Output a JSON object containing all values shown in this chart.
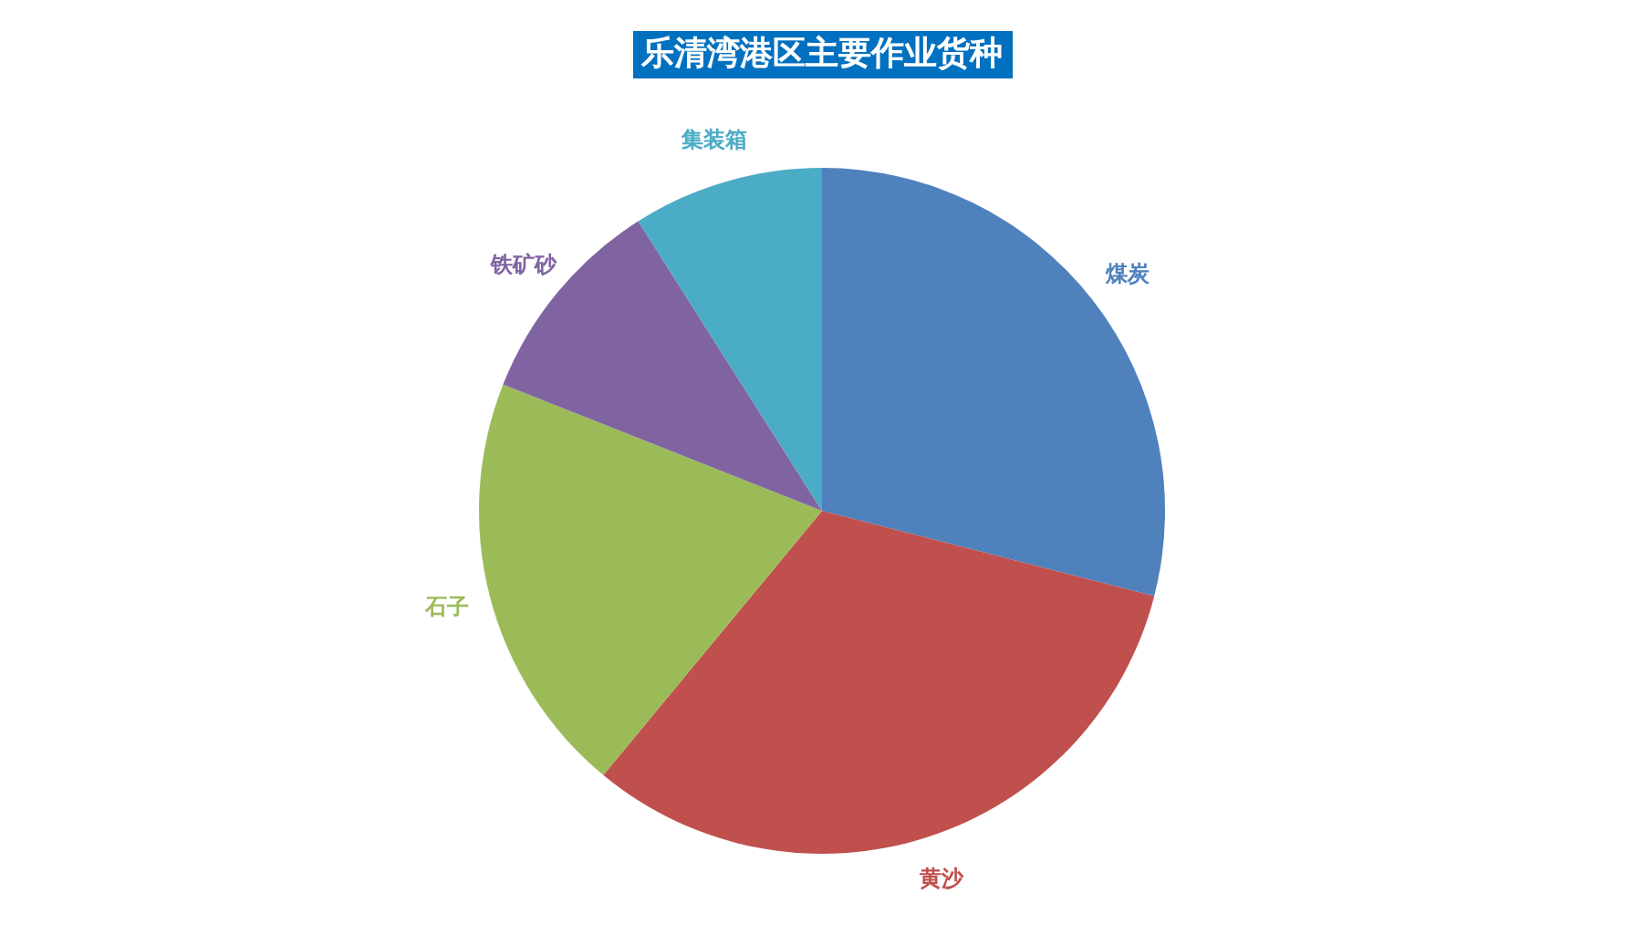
{
  "chart_data": {
    "type": "pie",
    "title": "乐清湾港区主要作业货种",
    "categories": [
      "煤炭",
      "黄沙",
      "石子",
      "铁矿砂",
      "集装箱"
    ],
    "values": [
      29,
      32,
      20,
      10,
      9
    ],
    "colors": [
      "#4f81bd",
      "#c0504d",
      "#9bbb59",
      "#8064a2",
      "#4bacc6"
    ]
  }
}
